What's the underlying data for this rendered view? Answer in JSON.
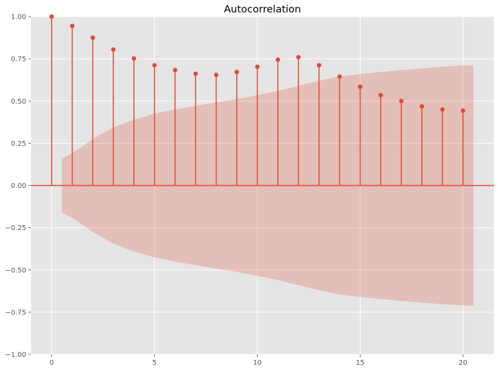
{
  "chart_data": {
    "type": "stem",
    "title": "Autocorrelation",
    "xlabel": "",
    "ylabel": "",
    "xlim": [
      -1,
      21.5
    ],
    "ylim": [
      -1.0,
      1.0
    ],
    "x_ticks": [
      0,
      5,
      10,
      15,
      20
    ],
    "y_ticks": [
      -1.0,
      -0.75,
      -0.5,
      -0.25,
      0.0,
      0.25,
      0.5,
      0.75,
      1.0
    ],
    "x_tick_labels": [
      "0",
      "5",
      "10",
      "15",
      "20"
    ],
    "y_tick_labels": [
      "−1.00",
      "−0.75",
      "−0.50",
      "−0.25",
      "0.00",
      "0.25",
      "0.50",
      "0.75",
      "1.00"
    ],
    "grid": true,
    "colors": {
      "stem": "#E24A33",
      "confidence_band": "#E24A33",
      "background": "#E5E5E5",
      "grid": "#FFFFFF"
    },
    "lags": [
      0,
      1,
      2,
      3,
      4,
      5,
      6,
      7,
      8,
      9,
      10,
      11,
      12,
      13,
      14,
      15,
      16,
      17,
      18,
      19,
      20
    ],
    "values": [
      1.0,
      0.945,
      0.875,
      0.805,
      0.752,
      0.712,
      0.683,
      0.662,
      0.655,
      0.672,
      0.703,
      0.745,
      0.76,
      0.712,
      0.645,
      0.585,
      0.535,
      0.5,
      0.468,
      0.45,
      0.443
    ],
    "confidence_interval": {
      "x": [
        0.5,
        1,
        2,
        3,
        4,
        5,
        6,
        7,
        8,
        9,
        10,
        11,
        12,
        13,
        14,
        15,
        16,
        17,
        18,
        19,
        20,
        20.5
      ],
      "upper": [
        0.16,
        0.19,
        0.275,
        0.345,
        0.39,
        0.425,
        0.45,
        0.472,
        0.492,
        0.512,
        0.535,
        0.56,
        0.59,
        0.62,
        0.645,
        0.66,
        0.672,
        0.683,
        0.693,
        0.703,
        0.71,
        0.712
      ]
    }
  }
}
